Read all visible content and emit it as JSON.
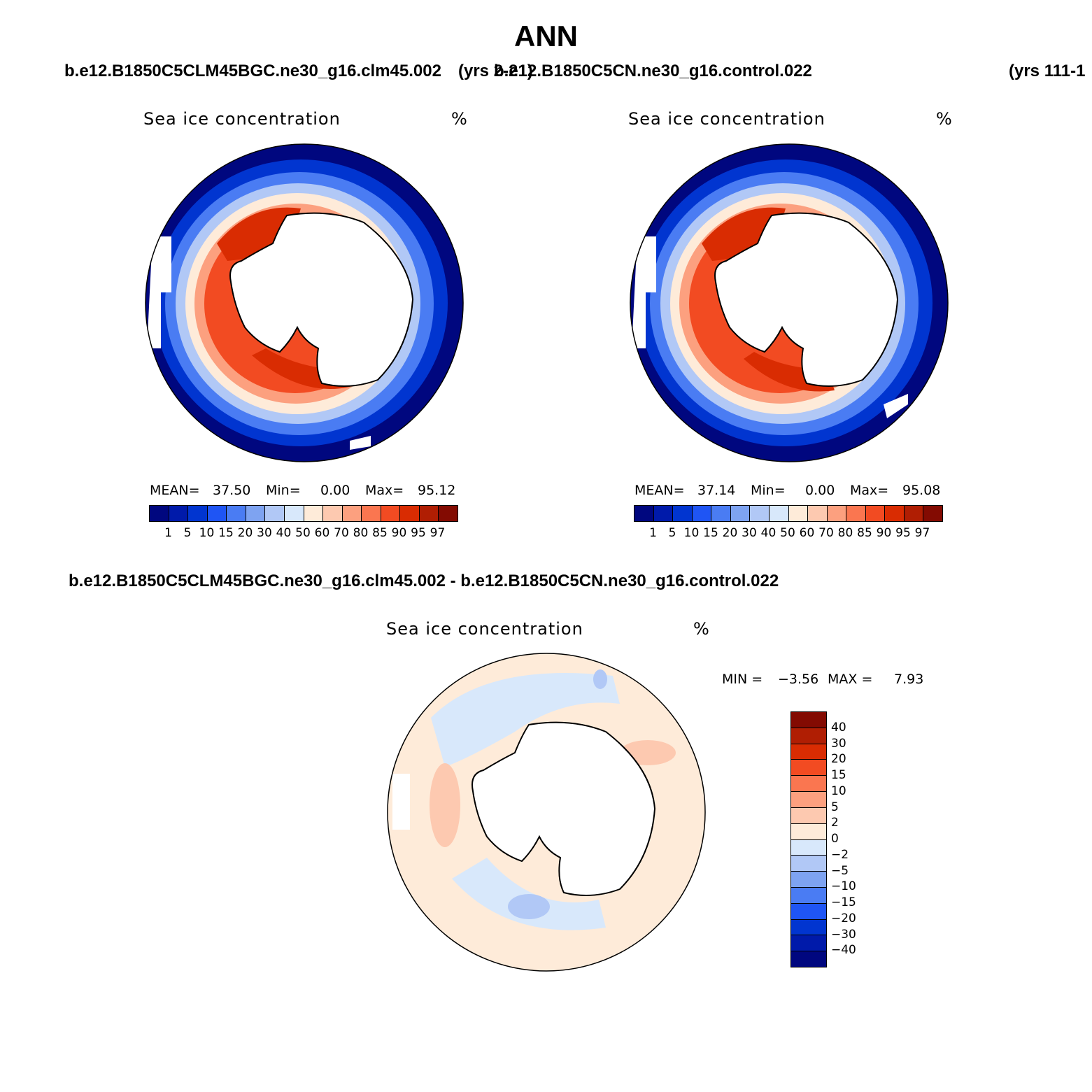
{
  "season": "ANN",
  "header": {
    "case_left": "b.e12.B1850C5CLM45BGC.ne30_g16.clm45.002",
    "years_left": "(yrs 2-21)",
    "case_right": "b.e12.B1850C5CN.ne30_g16.control.022",
    "years_right": "(yrs 111-1"
  },
  "diff_header": "b.e12.B1850C5CLM45BGC.ne30_g16.clm45.002 - b.e12.B1850C5CN.ne30_g16.control.022",
  "panels": [
    {
      "title": "Sea ice concentration",
      "units": "%",
      "mean_label": "MEAN=",
      "mean": "37.50",
      "min_label": "Min=",
      "min": "0.00",
      "max_label": "Max=",
      "max": "95.12"
    },
    {
      "title": "Sea ice concentration",
      "units": "%",
      "mean_label": "MEAN=",
      "mean": "37.14",
      "min_label": "Min=",
      "min": "0.00",
      "max_label": "Max=",
      "max": "95.08"
    }
  ],
  "diff_panel": {
    "title": "Sea ice concentration",
    "units": "%",
    "min_label": "MIN =",
    "min": "−3.56",
    "max_label": "MAX =",
    "max": "7.93"
  },
  "colorbar_levels": [
    "1",
    "5",
    "10",
    "15",
    "20",
    "30",
    "40",
    "50",
    "60",
    "70",
    "80",
    "85",
    "90",
    "95",
    "97"
  ],
  "colorbar_colors": [
    "#00077f",
    "#001aaa",
    "#0135d0",
    "#1f55f4",
    "#4a7cf3",
    "#7ea3f1",
    "#b1c8f6",
    "#d8e8fb",
    "#feebd9",
    "#fdc9b0",
    "#fca07f",
    "#fa7650",
    "#f24b22",
    "#d92c02",
    "#b01e03",
    "#830b02"
  ],
  "diff_levels": [
    "40",
    "30",
    "20",
    "15",
    "10",
    "5",
    "2",
    "0",
    "−2",
    "−5",
    "−10",
    "−15",
    "−20",
    "−30",
    "−40"
  ],
  "diff_colors": [
    "#830b02",
    "#b01e03",
    "#d92c02",
    "#f24b22",
    "#fa7650",
    "#fca07f",
    "#fdc9b0",
    "#feebd9",
    "#d8e8fb",
    "#b1c8f6",
    "#7ea3f1",
    "#4a7cf3",
    "#1f55f4",
    "#0135d0",
    "#001aaa",
    "#00077f"
  ]
}
